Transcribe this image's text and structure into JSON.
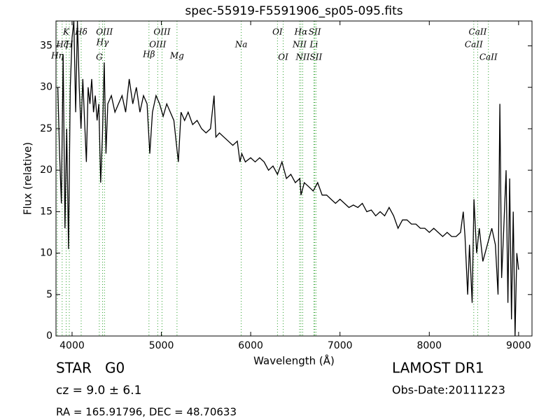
{
  "chart_data": {
    "type": "line",
    "title": "spec-55919-F5591906_sp05-095.fits",
    "xlabel": "Wavelength (Å)",
    "ylabel": "Flux (relative)",
    "xlim": [
      3820,
      9150
    ],
    "ylim": [
      0,
      38
    ],
    "xticks": [
      4000,
      5000,
      6000,
      7000,
      8000,
      9000
    ],
    "yticks": [
      0,
      5,
      10,
      15,
      20,
      25,
      30,
      35
    ],
    "color": "#000000",
    "line_color": "#2ca02c",
    "x": [
      3840,
      3860,
      3880,
      3900,
      3920,
      3940,
      3960,
      3980,
      4000,
      4020,
      4040,
      4060,
      4080,
      4100,
      4120,
      4140,
      4160,
      4180,
      4200,
      4220,
      4240,
      4260,
      4280,
      4300,
      4320,
      4340,
      4360,
      4380,
      4400,
      4440,
      4480,
      4520,
      4560,
      4600,
      4640,
      4680,
      4720,
      4760,
      4800,
      4840,
      4870,
      4900,
      4940,
      4980,
      5020,
      5060,
      5100,
      5140,
      5170,
      5190,
      5220,
      5260,
      5300,
      5350,
      5400,
      5450,
      5500,
      5550,
      5590,
      5610,
      5650,
      5700,
      5750,
      5800,
      5850,
      5880,
      5900,
      5940,
      6000,
      6050,
      6100,
      6150,
      6200,
      6250,
      6300,
      6350,
      6400,
      6450,
      6500,
      6550,
      6563,
      6600,
      6650,
      6700,
      6750,
      6800,
      6850,
      6900,
      6950,
      7000,
      7050,
      7100,
      7150,
      7200,
      7250,
      7300,
      7350,
      7400,
      7450,
      7500,
      7550,
      7600,
      7650,
      7700,
      7750,
      7800,
      7850,
      7900,
      7950,
      8000,
      8050,
      8100,
      8150,
      8200,
      8250,
      8300,
      8350,
      8380,
      8400,
      8430,
      8450,
      8480,
      8500,
      8530,
      8560,
      8600,
      8650,
      8700,
      8740,
      8770,
      8790,
      8810,
      8830,
      8860,
      8880,
      8900,
      8920,
      8940,
      8960,
      8980,
      9000
    ],
    "values": [
      30,
      22,
      16,
      34,
      13,
      25,
      10.5,
      30,
      36,
      38,
      27,
      38,
      30,
      25,
      31,
      26,
      21,
      30,
      28,
      31,
      27,
      29,
      26,
      28,
      18.5,
      24,
      33,
      22,
      28,
      29,
      27,
      28,
      29,
      27,
      31,
      28,
      30,
      27,
      29,
      28,
      22,
      27,
      29,
      28,
      26.5,
      28,
      27,
      26,
      23,
      21,
      27,
      26,
      27,
      25.5,
      26,
      25,
      24.5,
      25,
      29,
      24,
      24.5,
      24,
      23.5,
      23,
      23.5,
      21,
      22,
      21,
      21.5,
      21,
      21.5,
      21,
      20,
      20.5,
      19.5,
      21,
      19,
      19.5,
      18.5,
      19,
      17,
      18.5,
      18,
      17.5,
      18.5,
      17,
      17,
      16.5,
      16,
      16.5,
      16,
      15.5,
      15.8,
      15.5,
      16,
      15,
      15.2,
      14.5,
      15,
      14.5,
      15.5,
      14.5,
      13,
      14,
      14,
      13.5,
      13.5,
      13,
      13,
      12.5,
      13,
      12.5,
      12,
      12.5,
      12,
      12,
      12.5,
      15,
      12,
      5,
      11,
      4,
      16.5,
      10,
      13,
      9,
      11,
      13,
      11,
      5,
      28,
      7,
      12,
      20,
      4,
      19,
      2,
      15,
      0,
      10,
      8
    ],
    "lines": [
      {
        "label": "Hη",
        "wavelength": 3835
      },
      {
        "label": "Hζ",
        "wavelength": 3889
      },
      {
        "label": "K",
        "wavelength": 3934
      },
      {
        "label": "H",
        "wavelength": 3969
      },
      {
        "label": "Hδ",
        "wavelength": 4102
      },
      {
        "label": "G",
        "wavelength": 4305
      },
      {
        "label": "Hγ",
        "wavelength": 4341
      },
      {
        "label": "OIII",
        "wavelength": 4363
      },
      {
        "label": "Hβ",
        "wavelength": 4861
      },
      {
        "label": "OIII",
        "wavelength": 4959
      },
      {
        "label": "OIII",
        "wavelength": 5007
      },
      {
        "label": "Mg",
        "wavelength": 5175
      },
      {
        "label": "Na",
        "wavelength": 5894
      },
      {
        "label": "OI",
        "wavelength": 6300
      },
      {
        "label": "OI",
        "wavelength": 6364
      },
      {
        "label": "NII",
        "wavelength": 6548
      },
      {
        "label": "Hα",
        "wavelength": 6563
      },
      {
        "label": "NII",
        "wavelength": 6583
      },
      {
        "label": "Li",
        "wavelength": 6708
      },
      {
        "label": "SII",
        "wavelength": 6717
      },
      {
        "label": "SII",
        "wavelength": 6731
      },
      {
        "label": "CaII",
        "wavelength": 8498
      },
      {
        "label": "CaII",
        "wavelength": 8542
      },
      {
        "label": "CaII",
        "wavelength": 8662
      }
    ],
    "info": {
      "class": "STAR   G0",
      "redshift": "cz = 9.0 ± 6.1",
      "coords": "RA = 165.91796, DEC = 48.70633",
      "survey": "LAMOST DR1",
      "obs_date": "Obs-Date:20111223"
    }
  }
}
